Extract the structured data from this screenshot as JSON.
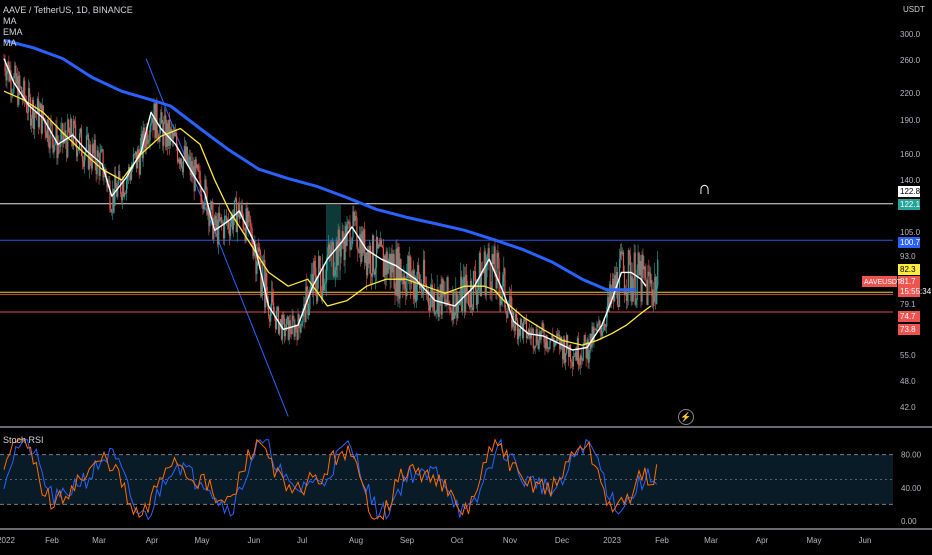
{
  "header": {
    "symbol_line": "AAVE / TetherUS, 1D, BINANCE",
    "indicators": [
      "MA",
      "EMA",
      "MA"
    ],
    "unit": "USDT"
  },
  "rsi_panel": {
    "title": "Stoch RSI"
  },
  "icons": {
    "magnet": "magnet-icon",
    "bolt": "lightning-icon"
  },
  "colors": {
    "background": "#000000",
    "up": "#26a69a",
    "down": "#ef5350",
    "ma200": "#2962ff",
    "ema": "#ffeb3b",
    "ma_fast": "#ffffff",
    "rsi_k": "#2962ff",
    "rsi_d": "#ff6d00",
    "hline_white": "#ffffff",
    "hline_blue": "#2962ff",
    "hline_red": "#ef5350",
    "hline_yellow": "#ffeb3b"
  },
  "chart_data": {
    "type": "candlestick",
    "scale": "log",
    "y_ticks": [
      300.0,
      260.0,
      220.0,
      190.0,
      160.0,
      140.0,
      105.0,
      93.0,
      79.1,
      55.0,
      48.0,
      42.0
    ],
    "x_labels": [
      "2022",
      "Feb",
      "Mar",
      "Apr",
      "May",
      "Jun",
      "Jul",
      "Aug",
      "Sep",
      "Oct",
      "Nov",
      "Dec",
      "2023",
      "Feb",
      "Mar",
      "Apr",
      "May",
      "Jun"
    ],
    "price_badges": [
      {
        "label": "122.8",
        "value": 122.8,
        "bg": "#ffffff",
        "fg": "#000000"
      },
      {
        "label": "122.1",
        "value": 122.1,
        "bg": "#26a69a",
        "fg": "#ffffff"
      },
      {
        "label": "100.7",
        "value": 100.7,
        "bg": "#2962ff",
        "fg": "#ffffff"
      },
      {
        "label": "82.3",
        "value": 82.3,
        "bg": "#ffeb3b",
        "fg": "#000000"
      },
      {
        "label": "81.7",
        "value": 81.7,
        "bg": "#ef5350",
        "fg": "#ffffff"
      },
      {
        "label": "15:55:34",
        "value": 79.9,
        "bg": "#ef5350",
        "fg": "#ffffff"
      },
      {
        "label": "74.7",
        "value": 74.7,
        "bg": "#ef5350",
        "fg": "#ffffff"
      },
      {
        "label": "73.8",
        "value": 73.8,
        "bg": "#ef5350",
        "fg": "#ffffff"
      }
    ],
    "symbol_badge": "AAVEUSDT",
    "horizontal_lines": [
      {
        "value": 122.8,
        "color": "#ffffff"
      },
      {
        "value": 100.7,
        "color": "#2962ff"
      },
      {
        "value": 81.7,
        "color": "#ef5350"
      },
      {
        "value": 82.3,
        "color": "#ffeb3b"
      },
      {
        "value": 74.7,
        "color": "#ef5350"
      }
    ],
    "trendline": {
      "from": {
        "day": 145,
        "price": 262
      },
      "to": {
        "day": 290,
        "price": 40
      }
    },
    "ma200_path": [
      [
        0,
        290
      ],
      [
        30,
        278
      ],
      [
        60,
        262
      ],
      [
        90,
        238
      ],
      [
        120,
        222
      ],
      [
        150,
        212
      ],
      [
        170,
        205
      ],
      [
        200,
        182
      ],
      [
        230,
        163
      ],
      [
        260,
        148
      ],
      [
        290,
        141
      ],
      [
        320,
        135
      ],
      [
        350,
        127
      ],
      [
        380,
        119
      ],
      [
        410,
        114
      ],
      [
        440,
        110
      ],
      [
        470,
        106
      ],
      [
        500,
        101
      ],
      [
        530,
        96
      ],
      [
        560,
        91
      ],
      [
        590,
        86
      ],
      [
        615,
        83
      ],
      [
        645,
        83
      ]
    ],
    "ema_path": [
      [
        0,
        222
      ],
      [
        20,
        212
      ],
      [
        40,
        198
      ],
      [
        60,
        178
      ],
      [
        80,
        162
      ],
      [
        100,
        148
      ],
      [
        120,
        140
      ],
      [
        140,
        160
      ],
      [
        160,
        175
      ],
      [
        180,
        182
      ],
      [
        200,
        168
      ],
      [
        215,
        140
      ],
      [
        230,
        118
      ],
      [
        250,
        100
      ],
      [
        270,
        88
      ],
      [
        290,
        84
      ],
      [
        310,
        86
      ],
      [
        330,
        78
      ],
      [
        350,
        80
      ],
      [
        370,
        84
      ],
      [
        390,
        86
      ],
      [
        410,
        86
      ],
      [
        430,
        84
      ],
      [
        450,
        82
      ],
      [
        470,
        84
      ],
      [
        490,
        84
      ],
      [
        500,
        83
      ],
      [
        510,
        80
      ],
      [
        530,
        72
      ],
      [
        550,
        66
      ],
      [
        570,
        61
      ],
      [
        590,
        59
      ],
      [
        605,
        61
      ],
      [
        620,
        64
      ],
      [
        635,
        68
      ],
      [
        650,
        74
      ],
      [
        660,
        78
      ]
    ],
    "ma_fast_path": [
      [
        0,
        262
      ],
      [
        10,
        232
      ],
      [
        25,
        206
      ],
      [
        40,
        192
      ],
      [
        55,
        168
      ],
      [
        70,
        176
      ],
      [
        85,
        162
      ],
      [
        100,
        152
      ],
      [
        110,
        128
      ],
      [
        125,
        142
      ],
      [
        140,
        162
      ],
      [
        150,
        198
      ],
      [
        160,
        182
      ],
      [
        175,
        168
      ],
      [
        190,
        148
      ],
      [
        205,
        130
      ],
      [
        215,
        106
      ],
      [
        230,
        112
      ],
      [
        240,
        118
      ],
      [
        255,
        100
      ],
      [
        270,
        78
      ],
      [
        285,
        66
      ],
      [
        300,
        68
      ],
      [
        315,
        84
      ],
      [
        330,
        92
      ],
      [
        345,
        100
      ],
      [
        355,
        108
      ],
      [
        370,
        96
      ],
      [
        385,
        92
      ],
      [
        400,
        90
      ],
      [
        420,
        86
      ],
      [
        440,
        80
      ],
      [
        460,
        78
      ],
      [
        480,
        84
      ],
      [
        495,
        92
      ],
      [
        510,
        82
      ],
      [
        520,
        70
      ],
      [
        535,
        64
      ],
      [
        550,
        63
      ],
      [
        565,
        60
      ],
      [
        580,
        57
      ],
      [
        595,
        58
      ],
      [
        610,
        68
      ],
      [
        620,
        80
      ],
      [
        630,
        88
      ],
      [
        640,
        88
      ],
      [
        650,
        86
      ],
      [
        655,
        84
      ]
    ],
    "rsi_y_ticks": [
      80.0,
      40.0,
      0.0
    ],
    "rsi_levels": [
      80,
      20
    ]
  }
}
